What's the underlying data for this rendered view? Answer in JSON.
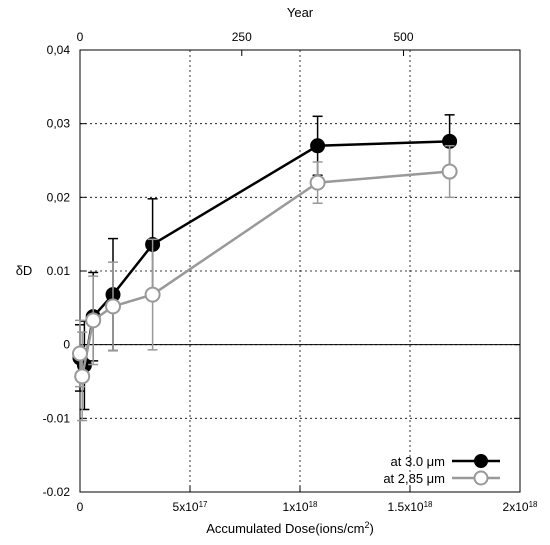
{
  "chart_data": {
    "type": "scatter",
    "xlabel": "Accumulated Dose(ions/cm",
    "xlabel_sup": "2",
    "xlabel_tail": ")",
    "ylabel": "δD",
    "x2label": "Year",
    "xlim": [
      0,
      2e+18
    ],
    "ylim": [
      -0.02,
      0.04
    ],
    "x2lim": [
      0,
      680
    ],
    "grid": true,
    "legend_position": "bottom-right",
    "x_ticks": [
      {
        "value": 0,
        "label": "0",
        "sup": ""
      },
      {
        "value": 5e+17,
        "label": "5x10",
        "sup": "17"
      },
      {
        "value": 1e+18,
        "label": "1x10",
        "sup": "18"
      },
      {
        "value": 1.5e+18,
        "label": "1.5x10",
        "sup": "18"
      },
      {
        "value": 2e+18,
        "label": "2x10",
        "sup": "18"
      }
    ],
    "y_ticks": [
      {
        "value": -0.02,
        "label": "-0.02"
      },
      {
        "value": -0.01,
        "label": "-0.01"
      },
      {
        "value": 0,
        "label": "0"
      },
      {
        "value": 0.01,
        "label": "0.01"
      },
      {
        "value": 0.02,
        "label": "0,02"
      },
      {
        "value": 0.03,
        "label": "0,03"
      },
      {
        "value": 0.04,
        "label": "0,04"
      }
    ],
    "x2_ticks": [
      {
        "value": 0,
        "label": "0"
      },
      {
        "value": 250,
        "label": "250"
      },
      {
        "value": 500,
        "label": "500"
      }
    ],
    "series": [
      {
        "name": "at 3.0 μm",
        "color": "#000000",
        "marker": "filled-circle",
        "x": [
          0,
          2e+16,
          6e+16,
          1.5e+17,
          3.3e+17,
          1.08e+18,
          1.68e+18
        ],
        "y": [
          -0.0018,
          -0.0028,
          0.0038,
          0.0068,
          0.0136,
          0.027,
          0.0276
        ],
        "err": [
          0.0045,
          0.006,
          0.006,
          0.0076,
          0.0062,
          0.004,
          0.0036
        ]
      },
      {
        "name": "at 2,85 μm",
        "color": "#999999",
        "marker": "open-circle",
        "x": [
          0,
          1e+16,
          6e+16,
          1.5e+17,
          3.3e+17,
          1.08e+18,
          1.68e+18
        ],
        "y": [
          -0.0012,
          -0.0043,
          0.0033,
          0.0052,
          0.0068,
          0.022,
          0.0235
        ],
        "err": [
          0.0045,
          0.006,
          0.006,
          0.006,
          0.0075,
          0.0028,
          0.0035
        ]
      }
    ]
  }
}
